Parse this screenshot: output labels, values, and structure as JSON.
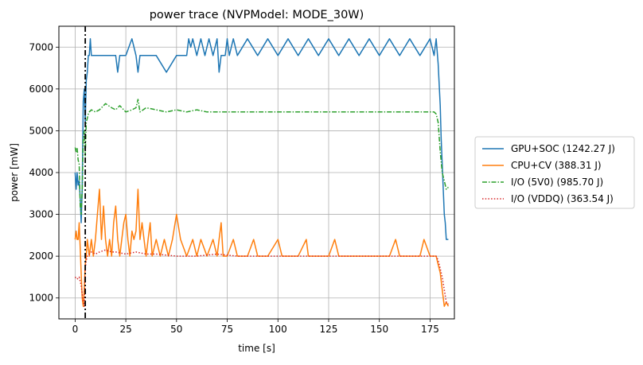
{
  "chart_data": {
    "type": "line",
    "title": "power trace (NVPModel: MODE_30W)",
    "xlabel": "time [s]",
    "ylabel": "power [mW]",
    "xlim": [
      -8,
      187
    ],
    "ylim": [
      500,
      7500
    ],
    "xticks": [
      0,
      25,
      50,
      75,
      100,
      125,
      150,
      175
    ],
    "yticks": [
      1000,
      2000,
      3000,
      4000,
      5000,
      6000,
      7000
    ],
    "grid": true,
    "legend_position": "outside-right",
    "vline": {
      "x": 5,
      "style": "dash-dot",
      "color": "#000000"
    },
    "series": [
      {
        "name": "GPU+SOC (1242.27 J)",
        "color": "#1f77b4",
        "style": "solid",
        "x": [
          0,
          0.5,
          1,
          1.5,
          2,
          2.5,
          3,
          3.5,
          4,
          4.5,
          5,
          5.5,
          6,
          6.5,
          7,
          7.5,
          8,
          8.5,
          9,
          9.5,
          10,
          12,
          15,
          18,
          20,
          21,
          22,
          25,
          28,
          30,
          31,
          32,
          35,
          40,
          45,
          50,
          52,
          55,
          56,
          57,
          58,
          60,
          62,
          64,
          66,
          68,
          70,
          71,
          72,
          74,
          75,
          76,
          78,
          80,
          85,
          90,
          95,
          100,
          105,
          110,
          115,
          120,
          125,
          130,
          135,
          140,
          145,
          150,
          155,
          160,
          165,
          170,
          175,
          177,
          178,
          179,
          180,
          180.5,
          181,
          181.5,
          182,
          182.5,
          183,
          183.5,
          184
        ],
        "y": [
          4000,
          3600,
          4000,
          3700,
          3800,
          3400,
          2800,
          3600,
          5700,
          6000,
          5200,
          6200,
          6400,
          6800,
          6800,
          7200,
          6800,
          6800,
          6800,
          6800,
          6800,
          6800,
          6800,
          6800,
          6800,
          6400,
          6800,
          6800,
          7200,
          6800,
          6400,
          6800,
          6800,
          6800,
          6400,
          6800,
          6800,
          6800,
          7200,
          7000,
          7200,
          6800,
          7200,
          6800,
          7200,
          6800,
          7200,
          6400,
          6800,
          6800,
          7200,
          6800,
          7200,
          6800,
          7200,
          6800,
          7200,
          6800,
          7200,
          6800,
          7200,
          6800,
          7200,
          6800,
          7200,
          6800,
          7200,
          6800,
          7200,
          6800,
          7200,
          6800,
          7200,
          6800,
          7200,
          6600,
          5600,
          4800,
          4200,
          3600,
          3000,
          2800,
          2400,
          2400,
          2400
        ]
      },
      {
        "name": "CPU+CV (388.31 J)",
        "color": "#ff7f0e",
        "style": "solid",
        "x": [
          0,
          0.5,
          1,
          1.5,
          2,
          2.5,
          3,
          3.5,
          4,
          4.5,
          5,
          5.5,
          6,
          7,
          8,
          9,
          10,
          11,
          12,
          13,
          14,
          15,
          16,
          17,
          18,
          19,
          20,
          21,
          22,
          23,
          24,
          25,
          26,
          27,
          28,
          29,
          30,
          31,
          32,
          33,
          34,
          35,
          36,
          37,
          38,
          40,
          42,
          44,
          46,
          48,
          50,
          52,
          55,
          58,
          60,
          62,
          65,
          68,
          70,
          71,
          72,
          73,
          75,
          78,
          80,
          85,
          88,
          90,
          95,
          100,
          102,
          105,
          110,
          114,
          115,
          120,
          125,
          128,
          130,
          135,
          140,
          145,
          150,
          155,
          158,
          160,
          165,
          170,
          172,
          175,
          178,
          179,
          180,
          181,
          182,
          183,
          184
        ],
        "y": [
          2400,
          2600,
          2400,
          2400,
          2800,
          2200,
          1600,
          1000,
          800,
          1200,
          1800,
          2000,
          2400,
          2000,
          2400,
          2000,
          2400,
          3000,
          3600,
          2400,
          3200,
          2400,
          2000,
          2400,
          2000,
          2800,
          3200,
          2400,
          2000,
          2400,
          2800,
          3000,
          2400,
          2000,
          2600,
          2400,
          2600,
          3600,
          2400,
          2800,
          2400,
          2000,
          2400,
          2800,
          2000,
          2400,
          2000,
          2400,
          2000,
          2400,
          3000,
          2400,
          2000,
          2400,
          2000,
          2400,
          2000,
          2400,
          2000,
          2400,
          2800,
          2000,
          2000,
          2400,
          2000,
          2000,
          2400,
          2000,
          2000,
          2400,
          2000,
          2000,
          2000,
          2400,
          2000,
          2000,
          2000,
          2400,
          2000,
          2000,
          2000,
          2000,
          2000,
          2000,
          2400,
          2000,
          2000,
          2000,
          2400,
          2000,
          2000,
          1800,
          1600,
          1200,
          800,
          900,
          800
        ]
      },
      {
        "name": "I/O (5V0) (985.70 J)",
        "color": "#2ca02c",
        "style": "dashdot",
        "x": [
          0,
          0.5,
          1,
          1.5,
          2,
          2.5,
          3,
          3.5,
          4,
          4.5,
          5,
          5.5,
          6,
          6.5,
          7,
          8,
          10,
          12,
          15,
          18,
          20,
          22,
          25,
          28,
          30,
          31,
          32,
          35,
          40,
          45,
          50,
          55,
          60,
          65,
          70,
          75,
          80,
          90,
          100,
          110,
          120,
          130,
          140,
          150,
          160,
          170,
          175,
          177,
          178,
          179,
          180,
          181,
          182,
          183,
          184
        ],
        "y": [
          4600,
          4500,
          4600,
          4300,
          4200,
          3200,
          3000,
          3600,
          4800,
          5000,
          4400,
          5200,
          5300,
          5400,
          5450,
          5500,
          5450,
          5500,
          5650,
          5550,
          5500,
          5600,
          5450,
          5500,
          5550,
          5750,
          5450,
          5550,
          5500,
          5450,
          5500,
          5450,
          5500,
          5450,
          5450,
          5450,
          5450,
          5450,
          5450,
          5450,
          5450,
          5450,
          5450,
          5450,
          5450,
          5450,
          5450,
          5450,
          5400,
          5200,
          4500,
          4000,
          3800,
          3600,
          3650
        ]
      },
      {
        "name": "I/O (VDDQ) (363.54 J)",
        "color": "#d62728",
        "style": "dotted",
        "x": [
          0,
          1,
          2,
          3,
          4,
          4.5,
          5,
          5.5,
          6,
          7,
          8,
          10,
          12,
          15,
          18,
          20,
          25,
          30,
          35,
          40,
          50,
          60,
          70,
          80,
          100,
          120,
          140,
          160,
          175,
          177,
          178,
          179,
          180,
          181,
          182,
          183,
          184
        ],
        "y": [
          1500,
          1450,
          1500,
          1300,
          900,
          800,
          1700,
          1900,
          2000,
          2050,
          2100,
          2050,
          2100,
          2150,
          2100,
          2100,
          2050,
          2100,
          2050,
          2050,
          2000,
          2000,
          2050,
          2000,
          2000,
          2000,
          2000,
          2000,
          2000,
          2000,
          2000,
          1900,
          1700,
          1500,
          1200,
          900,
          850
        ]
      }
    ]
  }
}
